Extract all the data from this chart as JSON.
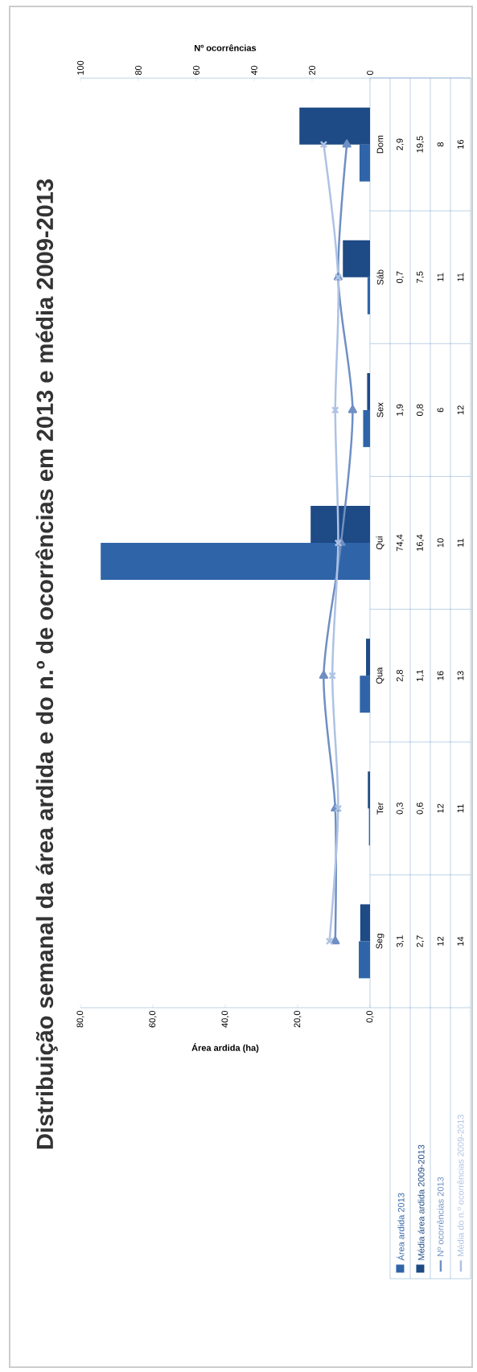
{
  "chart_data": {
    "type": "bar",
    "orientation": "horizontal",
    "title": "Distribuição semanal da área ardida e do n.º de ocorrências em 2013 e média 2009-2013",
    "xlabel": "Área ardida (ha)",
    "x2label": "Nº ocorrências",
    "categories": [
      "Dom",
      "Sáb",
      "Sex",
      "Qui",
      "Qua",
      "Ter",
      "Seg"
    ],
    "series": [
      {
        "name": "Área ardida 2013",
        "color": "#2f65a8",
        "values": [
          2.9,
          0.7,
          1.9,
          74.4,
          2.8,
          0.3,
          3.1
        ],
        "value_labels": [
          "2,9",
          "0,7",
          "1,9",
          "74,4",
          "2,8",
          "0,3",
          "3,1"
        ]
      },
      {
        "name": "Média área ardida 2009-2013",
        "color": "#1e4a85",
        "values": [
          19.5,
          7.5,
          0.8,
          16.4,
          1.1,
          0.6,
          2.7
        ],
        "value_labels": [
          "19,5",
          "7,5",
          "0,8",
          "16,4",
          "1,1",
          "0,6",
          "2,7"
        ]
      },
      {
        "name": "Nº ocorrências 2013",
        "type": "line",
        "axis": "x2",
        "marker": "triangle",
        "color": "#6f8fc4",
        "values": [
          8,
          11,
          6,
          10,
          16,
          12,
          12
        ],
        "value_labels": [
          "8",
          "11",
          "6",
          "10",
          "16",
          "12",
          "12"
        ]
      },
      {
        "name": "Média do n.º ocorrências 2009-2013",
        "type": "line",
        "axis": "x2",
        "marker": "cross",
        "color": "#aec2e4",
        "values": [
          16,
          11,
          12,
          11,
          13,
          11,
          14
        ],
        "value_labels": [
          "16",
          "11",
          "12",
          "11",
          "13",
          "11",
          "14"
        ]
      }
    ],
    "xlim": [
      80,
      0
    ],
    "xticks": [
      {
        "value": 80,
        "label": "80,0"
      },
      {
        "value": 60,
        "label": "60,0"
      },
      {
        "value": 40,
        "label": "40,0"
      },
      {
        "value": 20,
        "label": "20,0"
      },
      {
        "value": 0,
        "label": "0,0"
      }
    ],
    "x2lim": [
      100,
      0
    ],
    "x2ticks": [
      100,
      80,
      60,
      40,
      20,
      0
    ],
    "legend": "bottom",
    "grid": false
  }
}
